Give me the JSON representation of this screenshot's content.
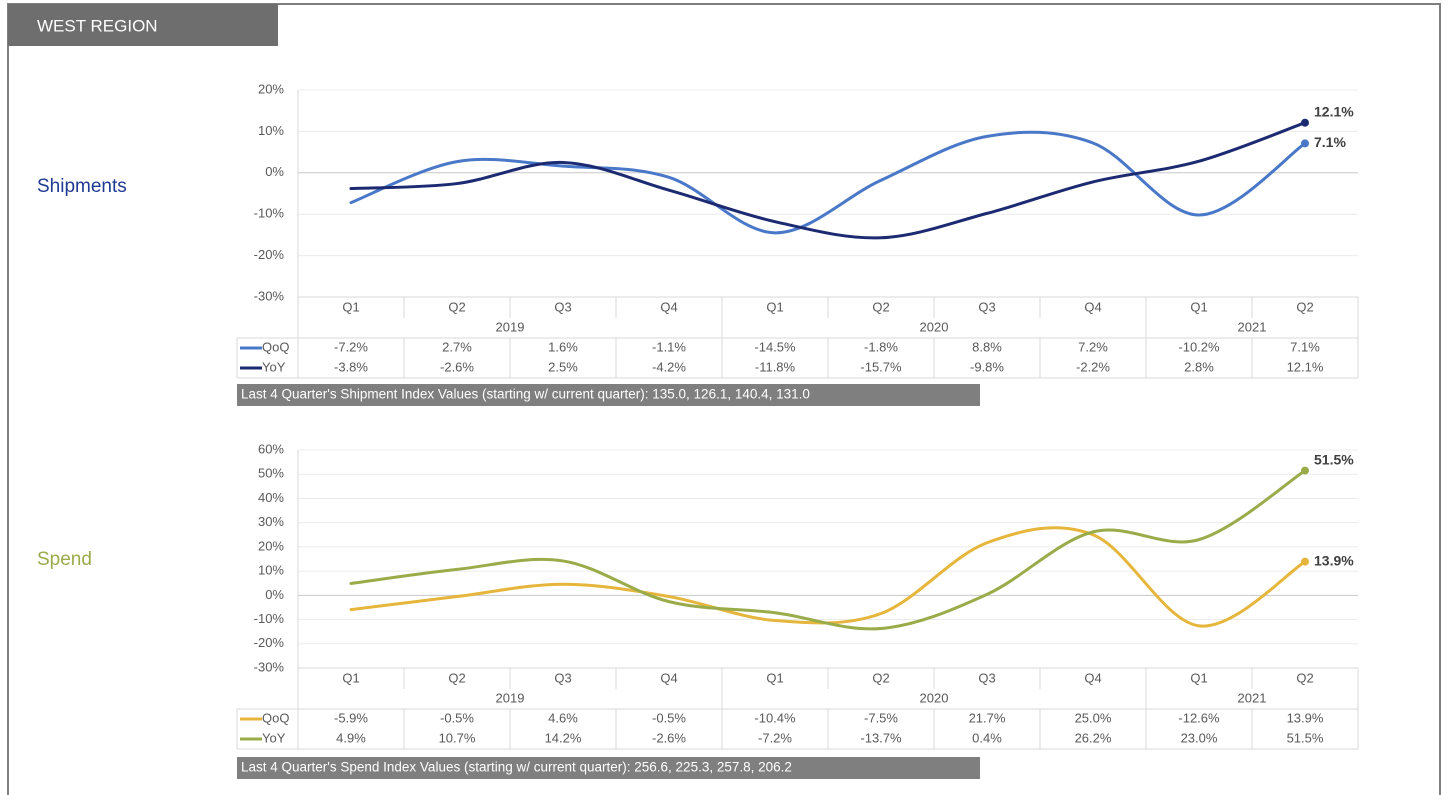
{
  "header": "WEST REGION",
  "chart_data": [
    {
      "type": "line",
      "title": "Shipments",
      "footnote": "Last 4 Quarter's Shipment Index Values (starting w/ current quarter): 135.0, 126.1, 140.4, 131.0",
      "categories": [
        "Q1",
        "Q2",
        "Q3",
        "Q4",
        "Q1",
        "Q2",
        "Q3",
        "Q4",
        "Q1",
        "Q2"
      ],
      "groups": [
        {
          "label": "2019",
          "size": 4
        },
        {
          "label": "2020",
          "size": 4
        },
        {
          "label": "2021",
          "size": 2
        }
      ],
      "ylim": [
        -30,
        20
      ],
      "yticks": [
        {
          "value": -30,
          "label": "-30%"
        },
        {
          "value": -20,
          "label": "-20%"
        },
        {
          "value": -10,
          "label": "-10%"
        },
        {
          "value": 0,
          "label": "0%"
        },
        {
          "value": 10,
          "label": "10%"
        },
        {
          "value": 20,
          "label": "20%"
        }
      ],
      "grid": true,
      "series": [
        {
          "name": "QoQ",
          "color": "#4a78c8",
          "values": [
            -7.2,
            2.7,
            1.6,
            -1.1,
            -14.5,
            -1.8,
            8.8,
            7.2,
            -10.2,
            7.1
          ],
          "value_labels": [
            "-7.2%",
            "2.7%",
            "1.6%",
            "-1.1%",
            "-14.5%",
            "-1.8%",
            "8.8%",
            "7.2%",
            "-10.2%",
            "7.1%"
          ]
        },
        {
          "name": "YoY",
          "color": "#1c2a72",
          "values": [
            -3.8,
            -2.6,
            2.5,
            -4.2,
            -11.8,
            -15.7,
            -9.8,
            -2.2,
            2.8,
            12.1
          ],
          "value_labels": [
            "-3.8%",
            "-2.6%",
            "2.5%",
            "-4.2%",
            "-11.8%",
            "-15.7%",
            "-9.8%",
            "-2.2%",
            "2.8%",
            "12.1%"
          ]
        }
      ]
    },
    {
      "type": "line",
      "title": "Spend",
      "footnote": "Last 4 Quarter's Spend Index Values (starting w/ current quarter): 256.6, 225.3, 257.8, 206.2",
      "categories": [
        "Q1",
        "Q2",
        "Q3",
        "Q4",
        "Q1",
        "Q2",
        "Q3",
        "Q4",
        "Q1",
        "Q2"
      ],
      "groups": [
        {
          "label": "2019",
          "size": 4
        },
        {
          "label": "2020",
          "size": 4
        },
        {
          "label": "2021",
          "size": 2
        }
      ],
      "ylim": [
        -30,
        60
      ],
      "yticks": [
        {
          "value": -30,
          "label": "-30%"
        },
        {
          "value": -20,
          "label": "-20%"
        },
        {
          "value": -10,
          "label": "-10%"
        },
        {
          "value": 0,
          "label": "0%"
        },
        {
          "value": 10,
          "label": "10%"
        },
        {
          "value": 20,
          "label": "20%"
        },
        {
          "value": 30,
          "label": "30%"
        },
        {
          "value": 40,
          "label": "40%"
        },
        {
          "value": 50,
          "label": "50%"
        },
        {
          "value": 60,
          "label": "60%"
        }
      ],
      "grid": true,
      "series": [
        {
          "name": "QoQ",
          "color": "#e6b63c",
          "values": [
            -5.9,
            -0.5,
            4.6,
            -0.5,
            -10.4,
            -7.5,
            21.7,
            25.0,
            -12.6,
            13.9
          ],
          "value_labels": [
            "-5.9%",
            "-0.5%",
            "4.6%",
            "-0.5%",
            "-10.4%",
            "-7.5%",
            "21.7%",
            "25.0%",
            "-12.6%",
            "13.9%"
          ]
        },
        {
          "name": "YoY",
          "color": "#9aab4a",
          "values": [
            4.9,
            10.7,
            14.2,
            -2.6,
            -7.2,
            -13.7,
            0.4,
            26.2,
            23.0,
            51.5
          ],
          "value_labels": [
            "4.9%",
            "10.7%",
            "14.2%",
            "-2.6%",
            "-7.2%",
            "-13.7%",
            "0.4%",
            "26.2%",
            "23.0%",
            "51.5%"
          ]
        }
      ]
    }
  ]
}
